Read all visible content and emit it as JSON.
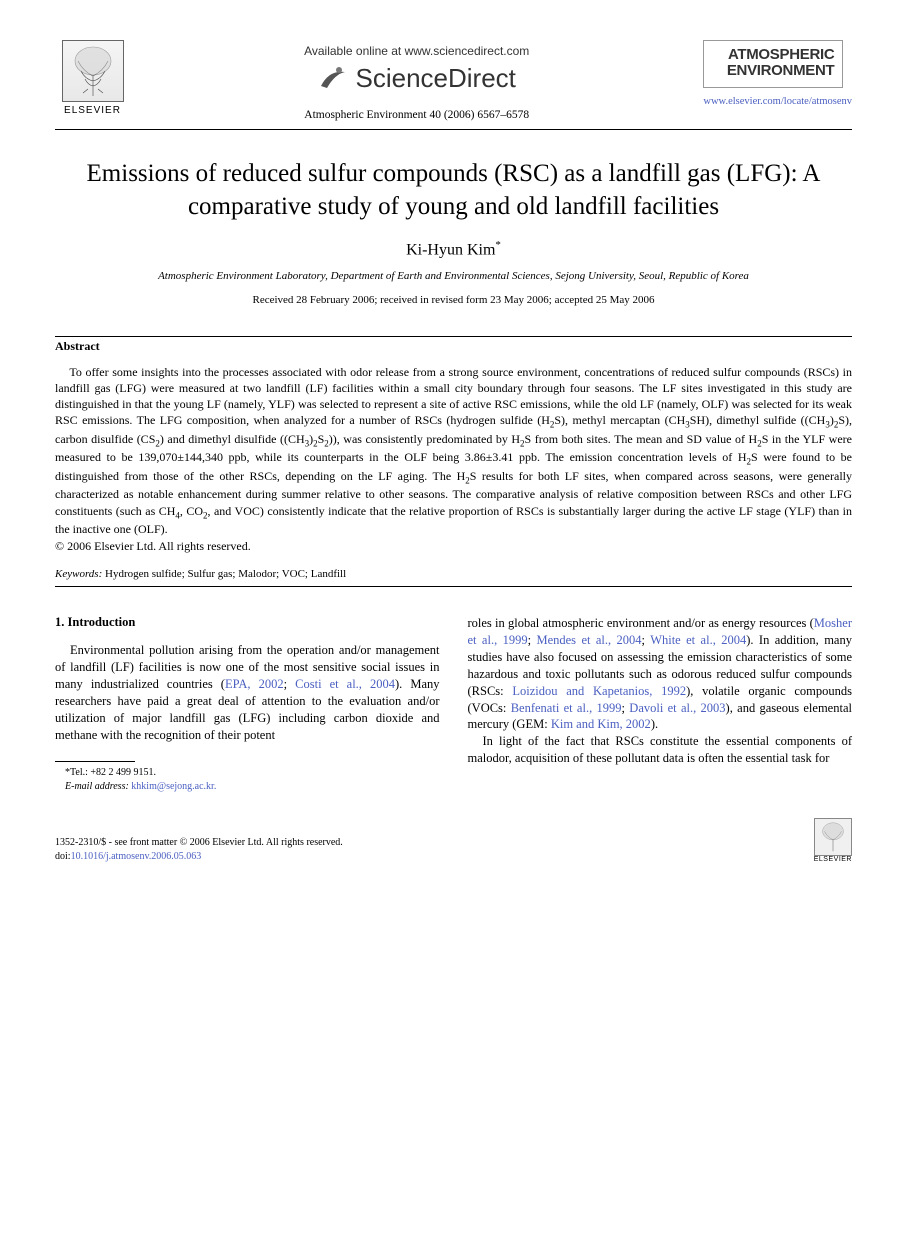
{
  "header": {
    "elsevier_label": "ELSEVIER",
    "available_text": "Available online at www.sciencedirect.com",
    "sciencedirect_text": "ScienceDirect",
    "journal_reference": "Atmospheric Environment 40 (2006) 6567–6578",
    "journal_cover_title_line1": "ATMOSPHERIC",
    "journal_cover_title_line2": "ENVIRONMENT",
    "journal_url": "www.elsevier.com/locate/atmosenv"
  },
  "article": {
    "title": "Emissions of reduced sulfur compounds (RSC) as a landfill gas (LFG): A comparative study of young and old landfill facilities",
    "author": "Ki-Hyun Kim",
    "author_marker": "*",
    "affiliation": "Atmospheric Environment Laboratory, Department of Earth and Environmental Sciences, Sejong University, Seoul, Republic of Korea",
    "dates": "Received 28 February 2006; received in revised form 23 May 2006; accepted 25 May 2006"
  },
  "abstract": {
    "heading": "Abstract",
    "body_html": "To offer some insights into the processes associated with odor release from a strong source environment, concentrations of reduced sulfur compounds (RSCs) in landfill gas (LFG) were measured at two landfill (LF) facilities within a small city boundary through four seasons. The LF sites investigated in this study are distinguished in that the young LF (namely, YLF) was selected to represent a site of active RSC emissions, while the old LF (namely, OLF) was selected for its weak RSC emissions. The LFG composition, when analyzed for a number of RSCs (hydrogen sulfide (H<sub>2</sub>S), methyl mercaptan (CH<sub>3</sub>SH), dimethyl sulfide ((CH<sub>3</sub>)<sub>2</sub>S), carbon disulfide (CS<sub>2</sub>) and dimethyl disulfide ((CH<sub>3</sub>)<sub>2</sub>S<sub>2</sub>)), was consistently predominated by H<sub>2</sub>S from both sites. The mean and SD value of H<sub>2</sub>S in the YLF were measured to be 139,070±144,340 ppb, while its counterparts in the OLF being 3.86±3.41 ppb. The emission concentration levels of H<sub>2</sub>S were found to be distinguished from those of the other RSCs, depending on the LF aging. The H<sub>2</sub>S results for both LF sites, when compared across seasons, were generally characterized as notable enhancement during summer relative to other seasons. The comparative analysis of relative composition between RSCs and other LFG constituents (such as CH<sub>4</sub>, CO<sub>2</sub>, and VOC) consistently indicate that the relative proportion of RSCs is substantially larger during the active LF stage (YLF) than in the inactive one (OLF).",
    "copyright": "© 2006 Elsevier Ltd. All rights reserved."
  },
  "keywords": {
    "label": "Keywords:",
    "text": " Hydrogen sulfide; Sulfur gas; Malodor; VOC; Landfill"
  },
  "body": {
    "section_heading": "1. Introduction",
    "col1_html": "Environmental pollution arising from the operation and/or management of landfill (LF) facilities is now one of the most sensitive social issues in many industrialized countries (<span class=\"link\">EPA, 2002</span>; <span class=\"link\">Costi et al., 2004</span>). Many researchers have paid a great deal of attention to the evaluation and/or utilization of major landfill gas (LFG) including carbon dioxide and methane with the recognition of their potent",
    "col2_p1_html": "roles in global atmospheric environment and/or as energy resources (<span class=\"link\">Mosher et al., 1999</span>; <span class=\"link\">Mendes et al., 2004</span>; <span class=\"link\">White et al., 2004</span>). In addition, many studies have also focused on assessing the emission characteristics of some hazardous and toxic pollutants such as odorous reduced sulfur compounds (RSCs: <span class=\"link\">Loizidou and Kapetanios, 1992</span>), volatile organic compounds (VOCs: <span class=\"link\">Benfenati et al., 1999</span>; <span class=\"link\">Davoli et al., 2003</span>), and gaseous elemental mercury (GEM: <span class=\"link\">Kim and Kim, 2002</span>).",
    "col2_p2_html": "In light of the fact that RSCs constitute the essential components of malodor, acquisition of these pollutant data is often the essential task for"
  },
  "footnote": {
    "tel_label": "*Tel.:",
    "tel_value": " +82 2 499 9151.",
    "email_label": "E-mail address:",
    "email_value": " khkim@sejong.ac.kr."
  },
  "footer": {
    "issn_line": "1352-2310/$ - see front matter © 2006 Elsevier Ltd. All rights reserved.",
    "doi_prefix": "doi:",
    "doi": "10.1016/j.atmosenv.2006.05.063"
  },
  "colors": {
    "link_color": "#4a5fc1",
    "text_color": "#000000",
    "bg_color": "#ffffff"
  }
}
